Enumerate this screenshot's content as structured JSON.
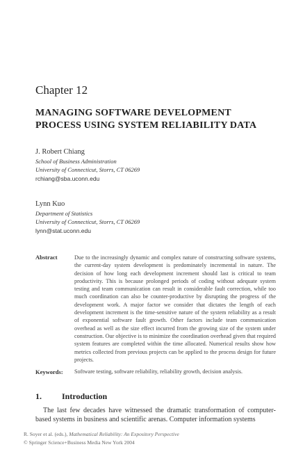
{
  "chapter": {
    "label": "Chapter 12",
    "title_line1": "MANAGING SOFTWARE DEVELOPMENT",
    "title_line2": "PROCESS USING SYSTEM RELIABILITY DATA"
  },
  "authors": [
    {
      "name": "J. Robert Chiang",
      "affiliation1": "School of Business Administration",
      "affiliation2": "University of Connecticut, Storrs, CT 06269",
      "email": "rchiang@sba.uconn.edu"
    },
    {
      "name": "Lynn Kuo",
      "affiliation1": "Department of Statistics",
      "affiliation2": "University of Connecticut, Storrs, CT 06269",
      "email": "lynn@stat.uconn.edu"
    }
  ],
  "abstract": {
    "label": "Abstract",
    "text": "Due to the increasingly dynamic and complex nature of constructing software systems, the current-day system development is predominately incremental in nature. The decision of how long each development increment should last is critical to team productivity. This is because prolonged periods of coding without adequate system testing and team communication can result in considerable fault correction, while too much coordination can also be counter-productive by disrupting the progress of the development work. A major factor we consider that dictates the length of each development increment is the time-sensitive nature of the system reliability as a result of exponential software fault growth. Other factors include team communication overhead as well as the size effect incurred from the growing size of the system under construction. Our objective is to minimize the coordination overhead given that required system features are completed within the time allocated. Numerical results show how metrics collected from previous projects can be applied to the process design for future projects."
  },
  "keywords": {
    "label": "Keywords:",
    "text": "Software testing, software reliability, reliability growth, decision analysis."
  },
  "section": {
    "number": "1.",
    "title": "Introduction",
    "text": "The last few decades have witnessed the dramatic transformation of computer-based systems in business and scientific arenas. Computer information systems"
  },
  "footer": {
    "citation_plain": "R. Soyer et al. (eds.), ",
    "citation_italic": "Mathematical Reliability: An Expository Perspective",
    "copyright": "© Springer Science+Business Media New York 2004"
  }
}
